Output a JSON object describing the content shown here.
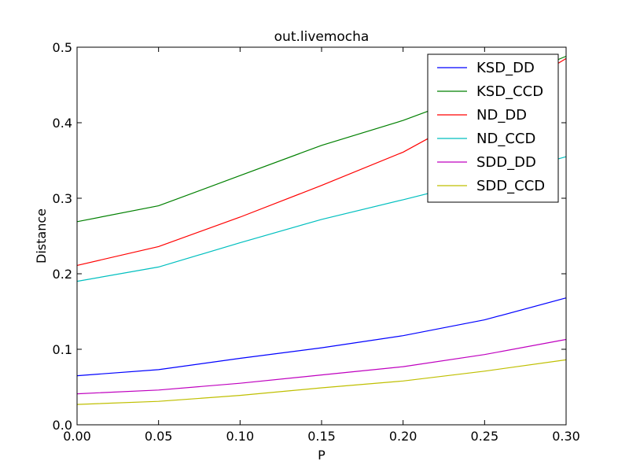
{
  "chart_data": {
    "type": "line",
    "title": "out.livemocha",
    "xlabel": "P",
    "ylabel": "Distance",
    "xlim": [
      0.0,
      0.3
    ],
    "ylim": [
      0.0,
      0.5
    ],
    "xticks": [
      "0.00",
      "0.05",
      "0.10",
      "0.15",
      "0.20",
      "0.25",
      "0.30"
    ],
    "yticks": [
      "0.0",
      "0.1",
      "0.2",
      "0.3",
      "0.4",
      "0.5"
    ],
    "grid": false,
    "legend": "top-right",
    "x": [
      0.0,
      0.05,
      0.1,
      0.15,
      0.2,
      0.25,
      0.3
    ],
    "series": [
      {
        "name": "KSD_DD",
        "color": "#0000ff",
        "values": [
          0.065,
          0.073,
          0.088,
          0.102,
          0.118,
          0.139,
          0.168
        ]
      },
      {
        "name": "KSD_CCD",
        "color": "#008000",
        "values": [
          0.269,
          0.29,
          0.33,
          0.37,
          0.403,
          0.443,
          0.488
        ]
      },
      {
        "name": "ND_DD",
        "color": "#ff0000",
        "values": [
          0.211,
          0.236,
          0.275,
          0.317,
          0.361,
          0.42,
          0.485
        ]
      },
      {
        "name": "ND_CCD",
        "color": "#00bfbf",
        "values": [
          0.19,
          0.209,
          0.241,
          0.272,
          0.298,
          0.325,
          0.355
        ]
      },
      {
        "name": "SDD_DD",
        "color": "#bf00bf",
        "values": [
          0.041,
          0.046,
          0.055,
          0.066,
          0.077,
          0.093,
          0.113
        ]
      },
      {
        "name": "SDD_CCD",
        "color": "#bfbf00",
        "values": [
          0.027,
          0.031,
          0.039,
          0.049,
          0.058,
          0.071,
          0.086
        ]
      }
    ]
  }
}
